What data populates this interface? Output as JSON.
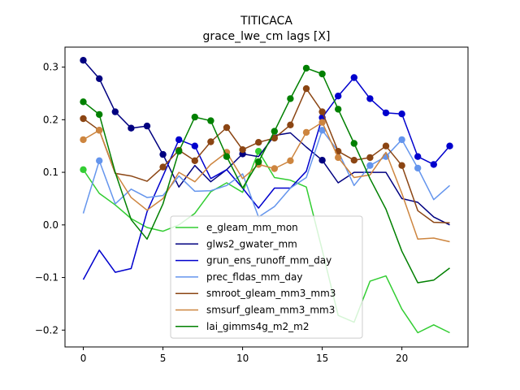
{
  "chart_data": {
    "type": "line",
    "title": "TITICACA",
    "subtitle": "grace_lwe_cm lags [X]",
    "xlabel": "",
    "ylabel": "",
    "xlim": [
      -1.15,
      24.15
    ],
    "ylim": [
      -0.232,
      0.338
    ],
    "xticks": [
      0,
      5,
      10,
      15,
      20
    ],
    "yticks": [
      -0.2,
      -0.1,
      0.0,
      0.1,
      0.2,
      0.3
    ],
    "xtick_labels": [
      "0",
      "5",
      "10",
      "15",
      "20"
    ],
    "ytick_labels": [
      "−0.2",
      "−0.1",
      "0.0",
      "0.1",
      "0.2",
      "0.3"
    ],
    "legend_position": "lower-center",
    "grid": false,
    "x": [
      0,
      1,
      2,
      3,
      4,
      5,
      6,
      7,
      8,
      9,
      10,
      11,
      12,
      13,
      14,
      15,
      16,
      17,
      18,
      19,
      20,
      21,
      22,
      23
    ],
    "series": [
      {
        "name": "e_gleam_mm_mon",
        "color": "#32cd32",
        "values": [
          0.105,
          0.06,
          0.038,
          0.012,
          -0.005,
          -0.012,
          0.0,
          0.022,
          0.063,
          0.08,
          0.062,
          0.14,
          0.09,
          0.085,
          0.072,
          -0.048,
          -0.172,
          -0.185,
          -0.107,
          -0.097,
          -0.16,
          -0.205,
          -0.19,
          -0.205
        ],
        "markers": [
          0,
          11
        ]
      },
      {
        "name": "glws2_gwater_mm",
        "color": "#000080",
        "values": [
          0.313,
          0.278,
          0.215,
          0.184,
          0.188,
          0.134,
          0.072,
          0.113,
          0.082,
          0.105,
          0.135,
          0.13,
          0.17,
          0.175,
          0.148,
          0.123,
          0.08,
          0.1,
          0.1,
          0.1,
          0.05,
          0.043,
          0.015,
          0.0
        ],
        "markers": [
          0,
          1,
          2,
          3,
          4,
          5,
          10,
          15
        ]
      },
      {
        "name": "grun_ens_runoff_mm_day",
        "color": "#0000cd",
        "values": [
          -0.104,
          -0.048,
          -0.09,
          -0.083,
          0.025,
          0.093,
          0.162,
          0.15,
          0.088,
          0.105,
          0.07,
          0.032,
          0.07,
          0.07,
          0.102,
          0.204,
          0.245,
          0.28,
          0.24,
          0.213,
          0.211,
          0.13,
          0.115,
          0.15
        ],
        "markers": [
          6,
          7,
          15,
          16,
          17,
          18,
          19,
          20,
          21,
          22,
          23
        ]
      },
      {
        "name": "prec_fldas_mm_day",
        "color": "#6495ed",
        "values": [
          0.022,
          0.122,
          0.04,
          0.068,
          0.052,
          0.056,
          0.093,
          0.064,
          0.065,
          0.075,
          0.097,
          0.015,
          0.035,
          0.07,
          0.09,
          0.18,
          0.14,
          0.075,
          0.113,
          0.13,
          0.162,
          0.108,
          0.048,
          0.075
        ],
        "markers": [
          1,
          15,
          18,
          19,
          20,
          21
        ]
      },
      {
        "name": "smroot_gleam_mm3_mm3",
        "color": "#8b4513",
        "values": [
          0.202,
          0.18,
          0.098,
          0.093,
          0.083,
          0.11,
          0.142,
          0.122,
          0.158,
          0.185,
          0.143,
          0.157,
          0.165,
          0.19,
          0.259,
          0.215,
          0.14,
          0.123,
          0.128,
          0.15,
          0.113,
          0.027,
          0.005,
          0.004
        ],
        "markers": [
          0,
          1,
          5,
          6,
          7,
          8,
          9,
          10,
          11,
          12,
          13,
          14,
          15,
          16,
          17,
          18,
          19,
          20
        ]
      },
      {
        "name": "smsurf_gleam_mm3_mm3",
        "color": "#cd853f",
        "values": [
          0.162,
          0.18,
          0.1,
          0.052,
          0.028,
          0.05,
          0.1,
          0.082,
          0.115,
          0.138,
          0.088,
          0.115,
          0.107,
          0.122,
          0.176,
          0.195,
          0.128,
          0.09,
          0.095,
          0.138,
          0.06,
          -0.027,
          -0.025,
          -0.032
        ],
        "markers": [
          0,
          1,
          9,
          11,
          12,
          13,
          14,
          15,
          16
        ]
      },
      {
        "name": "lai_gimms4g_m2_m2",
        "color": "#008000",
        "values": [
          0.234,
          0.21,
          0.1,
          0.01,
          -0.027,
          0.04,
          0.14,
          0.205,
          0.198,
          0.13,
          0.07,
          0.12,
          0.178,
          0.24,
          0.298,
          0.287,
          0.22,
          0.155,
          0.088,
          0.03,
          -0.05,
          -0.11,
          -0.105,
          -0.082
        ],
        "markers": [
          0,
          1,
          6,
          7,
          8,
          9,
          11,
          12,
          13,
          14,
          15,
          16,
          17
        ]
      }
    ]
  }
}
